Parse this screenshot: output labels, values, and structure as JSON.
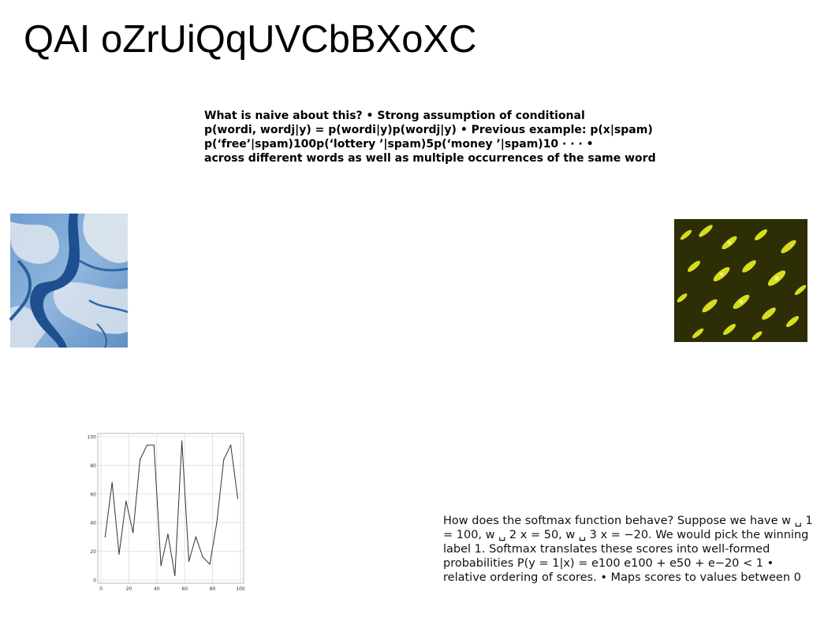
{
  "title": "QAI oZrUiQqUVCbBXoXC",
  "bold_block": {
    "lines": [
      "What is naive about this? • Strong assumption of conditional",
      "p(wordi, wordj|y) = p(wordi|y)p(wordj|y) • Previous example: p(x|spam)",
      "p(‘free’|spam)100p(‘lottery ’|spam)5p(‘money ’|spam)10 · · · •",
      "across different words as well as multiple occurrences of the same word"
    ]
  },
  "softmax_block": {
    "lines": [
      "How does the softmax function behave? Suppose we have w ␣ 1",
      "= 100, w ␣ 2 x = 50, w ␣ 3 x = −20. We would pick the winning",
      "label 1. Softmax translates these scores into well-formed",
      "probabilities P(y = 1|x) = e100 e100 + e50 + e−20 < 1 •",
      "relative ordering of scores. • Maps scores to values between 0"
    ]
  },
  "images": {
    "river": {
      "icon": "aerial-river-image"
    },
    "sparks": {
      "icon": "yellow-sparks-image"
    }
  },
  "chart_data": {
    "type": "line",
    "x": [
      3,
      8,
      13,
      18,
      23,
      28,
      33,
      38,
      43,
      48,
      53,
      58,
      63,
      68,
      73,
      78,
      83,
      88,
      93,
      98
    ],
    "series": [
      {
        "values": [
          30,
          68,
          18,
          55,
          33,
          84,
          94,
          94,
          10,
          32,
          3,
          97,
          13,
          30,
          16,
          11,
          40,
          84,
          94,
          57
        ],
        "color": "#333333"
      }
    ],
    "xlim": [
      0,
      100
    ],
    "ylim": [
      0,
      100
    ],
    "xticks": [
      "0",
      "20",
      "40",
      "60",
      "80",
      "100"
    ],
    "yticks": [
      "0",
      "20",
      "40",
      "60",
      "80",
      "100"
    ],
    "grid": true
  }
}
